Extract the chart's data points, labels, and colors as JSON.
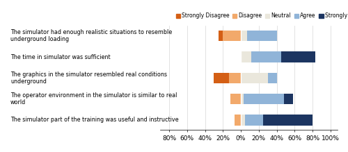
{
  "questions": [
    "The simulator had enough realistic situations to resemble\nunderground loading",
    "The time in simulator was sufficient",
    "The graphics in the simulator resembled real conditions\nunderground",
    "The operator environment in the simulator is similar to real\nworld",
    "The simulator part of the training was useful and instructive"
  ],
  "strongly_disagree": [
    5,
    0,
    17,
    0,
    0
  ],
  "disagree": [
    20,
    0,
    13,
    12,
    7
  ],
  "neutral": [
    7,
    12,
    30,
    3,
    5
  ],
  "agree": [
    33,
    33,
    10,
    45,
    20
  ],
  "strongly_agree": [
    0,
    38,
    0,
    10,
    55
  ],
  "colors": {
    "strongly_disagree": "#D45F15",
    "disagree": "#F2A96B",
    "neutral": "#EAE7DC",
    "agree": "#90B4D8",
    "strongly_agree": "#1C3561"
  },
  "xlim": [
    -90,
    108
  ],
  "xticks": [
    -80,
    -60,
    -40,
    -20,
    0,
    20,
    40,
    60,
    80,
    100
  ],
  "xticklabels": [
    "80%",
    "60%",
    "40%",
    "20%",
    "0%",
    "20%",
    "40%",
    "60%",
    "80%",
    "100%"
  ],
  "figsize": [
    5.0,
    2.19
  ],
  "dpi": 100,
  "bar_height": 0.5,
  "legend_fontsize": 5.5,
  "ytick_fontsize": 5.8,
  "xtick_fontsize": 6.5
}
